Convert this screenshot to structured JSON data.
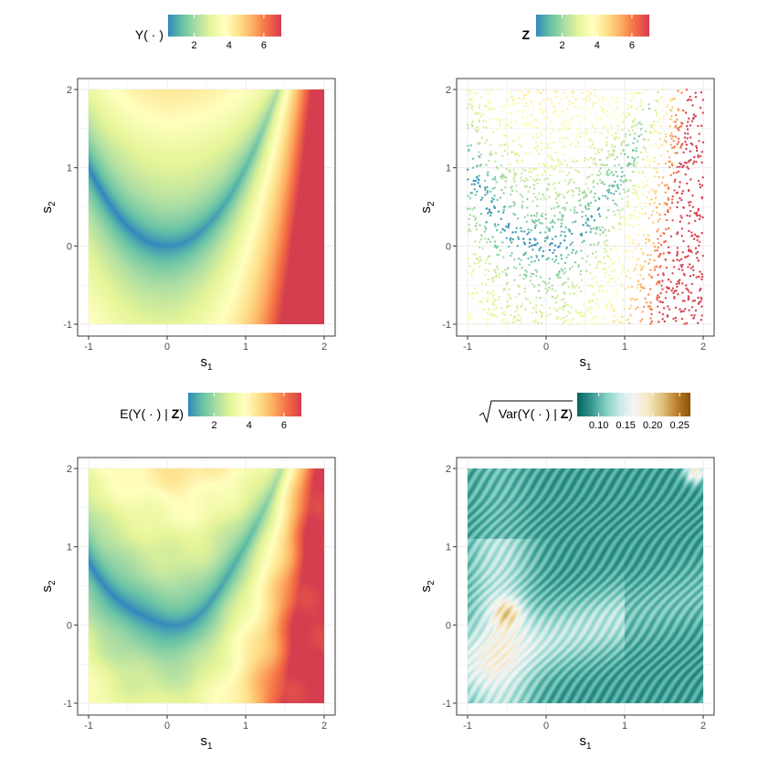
{
  "chart_data": [
    {
      "type": "heatmap",
      "legend": {
        "title": "Y( · )",
        "breaks": [
          2,
          4,
          6
        ],
        "range": [
          0.5,
          7.0
        ],
        "palette": "Spectral"
      },
      "xlabel": "s",
      "xlabel_sub": "1",
      "ylabel": "s",
      "ylabel_sub": "2",
      "xlim": [
        -1,
        2
      ],
      "ylim": [
        -1,
        2
      ],
      "x_ticks": [
        "-1",
        "0",
        "1",
        "2"
      ],
      "y_ticks": [
        "-1",
        "0",
        "1",
        "2"
      ],
      "grid": true,
      "legend_position": "top"
    },
    {
      "type": "scatter",
      "legend": {
        "title": "Z",
        "title_bold": true,
        "breaks": [
          2,
          4,
          6
        ],
        "range": [
          0.5,
          7.0
        ],
        "palette": "Spectral"
      },
      "xlabel": "s",
      "xlabel_sub": "1",
      "ylabel": "s",
      "ylabel_sub": "2",
      "xlim": [
        -1,
        2
      ],
      "ylim": [
        -1,
        2
      ],
      "x_ticks": [
        "-1",
        "0",
        "1",
        "2"
      ],
      "y_ticks": [
        "-1",
        "0",
        "1",
        "2"
      ],
      "grid": true,
      "legend_position": "top"
    },
    {
      "type": "heatmap",
      "legend": {
        "title_parts": [
          "E(Y( · ) | ",
          "Z",
          ")"
        ],
        "breaks": [
          2,
          4,
          6
        ],
        "range": [
          0.5,
          7.0
        ],
        "palette": "Spectral"
      },
      "xlabel": "s",
      "xlabel_sub": "1",
      "ylabel": "s",
      "ylabel_sub": "2",
      "xlim": [
        -1,
        2
      ],
      "ylim": [
        -1,
        2
      ],
      "x_ticks": [
        "-1",
        "0",
        "1",
        "2"
      ],
      "y_ticks": [
        "-1",
        "0",
        "1",
        "2"
      ],
      "grid": true,
      "legend_position": "top"
    },
    {
      "type": "heatmap",
      "legend": {
        "title_parts": [
          "Var(Y( · ) | ",
          "Z",
          ")"
        ],
        "sqrt": true,
        "breaks": [
          0.1,
          0.15,
          0.2,
          0.25
        ],
        "break_labels": [
          "0.10",
          "0.15",
          "0.20",
          "0.25"
        ],
        "range": [
          0.06,
          0.27
        ],
        "palette": "BrBG-reversed"
      },
      "xlabel": "s",
      "xlabel_sub": "1",
      "ylabel": "s",
      "ylabel_sub": "2",
      "xlim": [
        -1,
        2
      ],
      "ylim": [
        -1,
        2
      ],
      "x_ticks": [
        "-1",
        "0",
        "1",
        "2"
      ],
      "y_ticks": [
        "-1",
        "0",
        "1",
        "2"
      ],
      "grid": true,
      "legend_position": "top"
    }
  ],
  "colors": {
    "spectral": [
      "#3288bd",
      "#66c2a5",
      "#abdda4",
      "#e6f598",
      "#ffffbf",
      "#fee08b",
      "#fdae61",
      "#f46d43",
      "#d53e4f"
    ],
    "brbg_reversed": [
      "#01665e",
      "#35978f",
      "#80cdc1",
      "#c7eae5",
      "#f5f5f5",
      "#f6e8c3",
      "#dfc27d",
      "#bf812d",
      "#8c510a"
    ],
    "panel_border": "#333333",
    "grid": "#ebebeb"
  }
}
